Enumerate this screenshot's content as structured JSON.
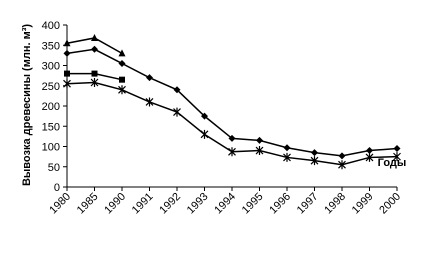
{
  "chart_data": {
    "type": "line",
    "y_label": "Вывозка древесины (млн. м³)",
    "x_label": "Годы",
    "categories": [
      "1980",
      "1985",
      "1990",
      "1991",
      "1992",
      "1993",
      "1994",
      "1995",
      "1996",
      "1997",
      "1998",
      "1999",
      "2000"
    ],
    "series": [
      {
        "color": "#000000",
        "marker": "triangle",
        "values": [
          355,
          368,
          330,
          null,
          null,
          null,
          null,
          null,
          null,
          null,
          null,
          null,
          null
        ]
      },
      {
        "color": "#000000",
        "marker": "diamond",
        "values": [
          330,
          340,
          305,
          270,
          240,
          175,
          120,
          115,
          97,
          85,
          77,
          90,
          95
        ]
      },
      {
        "color": "#000000",
        "marker": "square",
        "values": [
          280,
          280,
          265,
          null,
          null,
          null,
          null,
          null,
          null,
          null,
          null,
          null,
          null
        ]
      },
      {
        "color": "#000000",
        "marker": "star",
        "values": [
          255,
          258,
          240,
          210,
          185,
          130,
          87,
          90,
          73,
          65,
          55,
          73,
          75
        ]
      }
    ],
    "ylim": [
      0,
      400
    ],
    "yticks": [
      0,
      50,
      100,
      150,
      200,
      250,
      300,
      350,
      400
    ]
  }
}
